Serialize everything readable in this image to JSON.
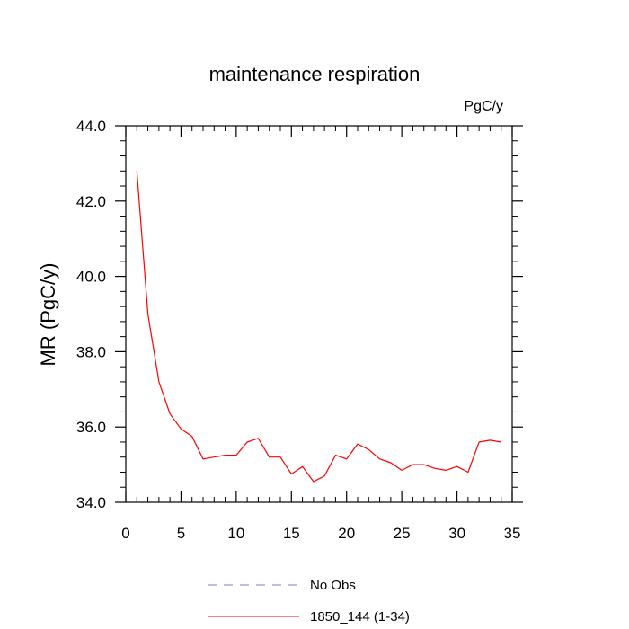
{
  "chart_data": {
    "type": "line",
    "title": "maintenance respiration",
    "units_label": "PgC/y",
    "xlabel": "",
    "ylabel": "MR  (PgC/y)",
    "xlim": [
      0,
      35
    ],
    "ylim": [
      34.0,
      44.0
    ],
    "x_ticks": [
      0,
      5,
      10,
      15,
      20,
      25,
      30,
      35
    ],
    "x_tick_labels": [
      "0",
      "5",
      "10",
      "15",
      "20",
      "25",
      "30",
      "35"
    ],
    "y_ticks": [
      34.0,
      36.0,
      38.0,
      40.0,
      42.0,
      44.0
    ],
    "y_tick_labels": [
      "34.0",
      "36.0",
      "38.0",
      "40.0",
      "42.0",
      "44.0"
    ],
    "grid": false,
    "legend_position": "bottom",
    "series": [
      {
        "name": "1850_144 (1-34)",
        "color": "#ff0000",
        "dash": "solid",
        "x": [
          1,
          2,
          3,
          4,
          5,
          6,
          7,
          8,
          9,
          10,
          11,
          12,
          13,
          14,
          15,
          16,
          17,
          18,
          19,
          20,
          21,
          22,
          23,
          24,
          25,
          26,
          27,
          28,
          29,
          30,
          31,
          32,
          33,
          34
        ],
        "y": [
          42.8,
          39.0,
          37.2,
          36.35,
          35.95,
          35.75,
          35.15,
          35.2,
          35.25,
          35.25,
          35.6,
          35.7,
          35.2,
          35.2,
          34.75,
          34.95,
          34.55,
          34.7,
          35.25,
          35.15,
          35.55,
          35.4,
          35.15,
          35.05,
          34.85,
          35.0,
          35.0,
          34.9,
          34.85,
          34.95,
          34.8,
          35.6,
          35.65,
          35.6
        ]
      }
    ],
    "legend": [
      {
        "label": "No Obs",
        "color": "#7b7bd4",
        "dash": "dashed"
      },
      {
        "label": "1850_144 (1-34)",
        "color": "#ff0000",
        "dash": "solid"
      }
    ]
  }
}
